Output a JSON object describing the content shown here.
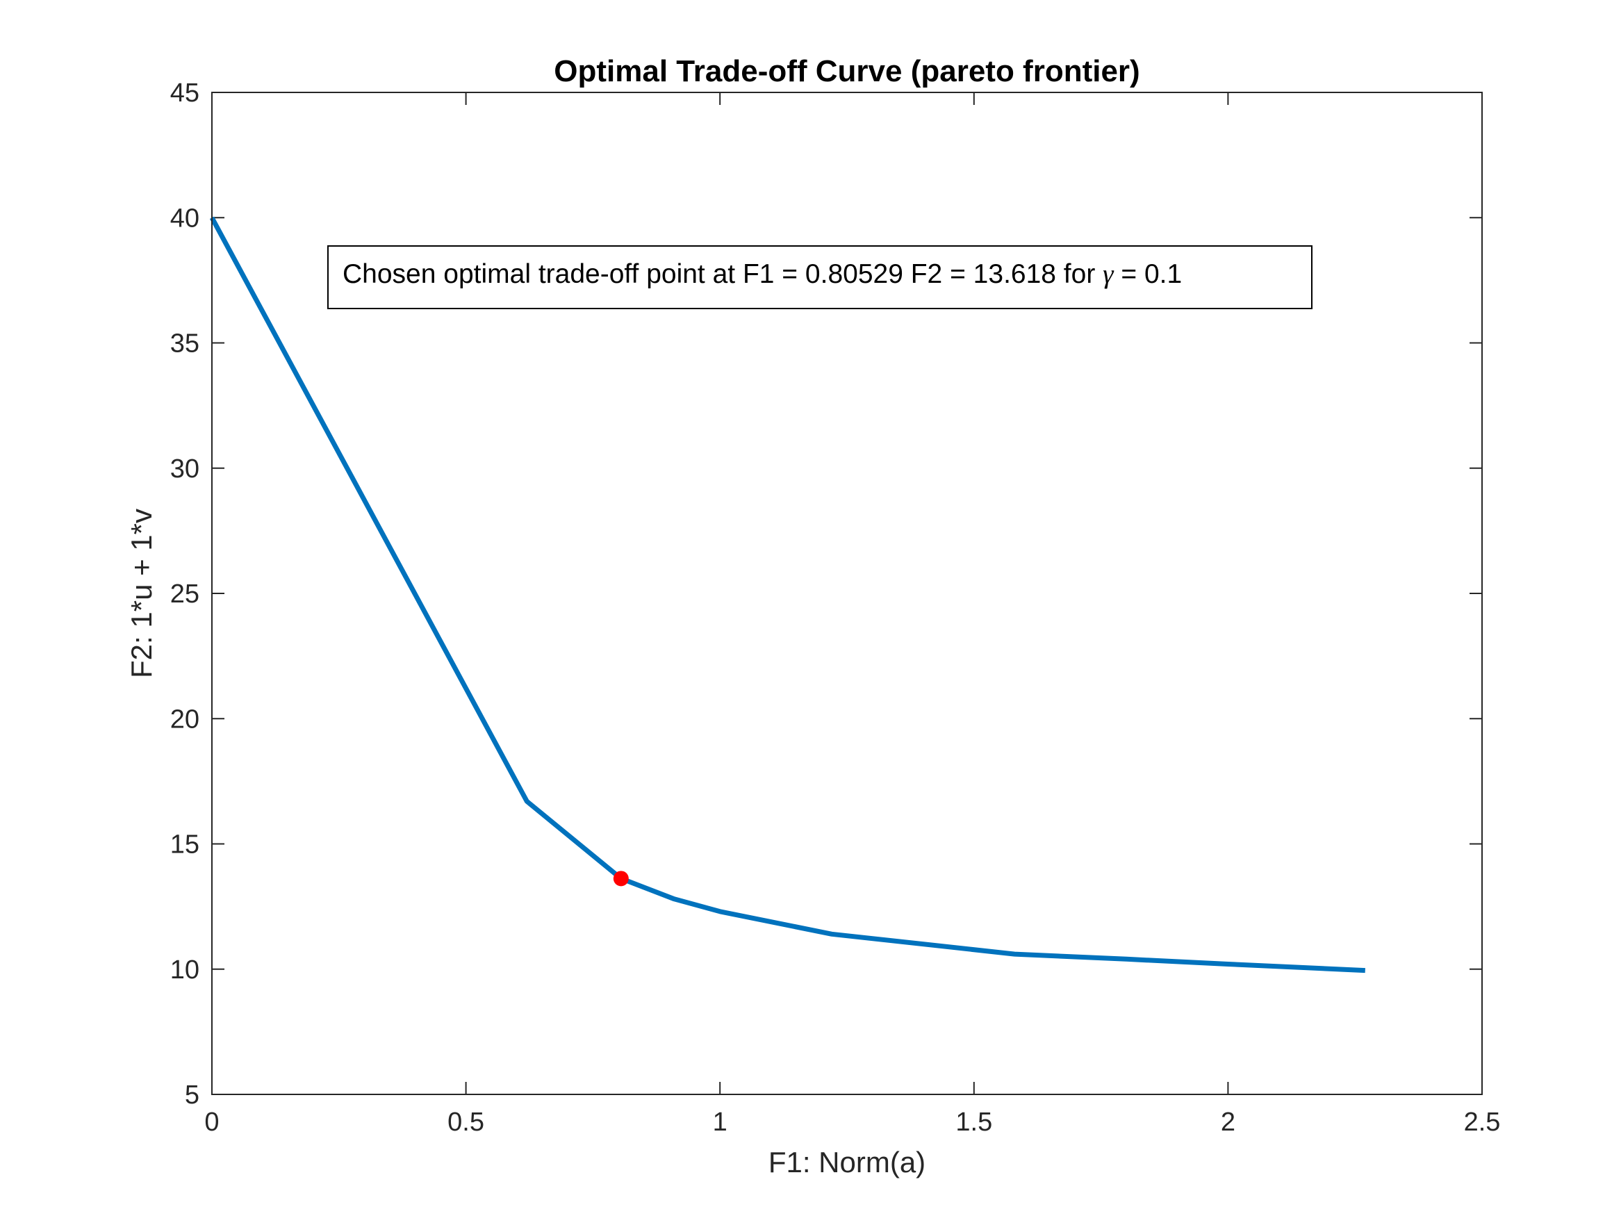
{
  "chart_data": {
    "type": "line",
    "title": "Optimal Trade-off Curve (pareto frontier)",
    "xlabel": "F1: Norm(a)",
    "ylabel": "F2: 1*u + 1*v",
    "xlim": [
      0,
      2.5
    ],
    "ylim": [
      5,
      45
    ],
    "xticks": [
      0,
      0.5,
      1,
      1.5,
      2,
      2.5
    ],
    "xtick_labels": [
      "0",
      "0.5",
      "1",
      "1.5",
      "2",
      "2.5"
    ],
    "yticks": [
      5,
      10,
      15,
      20,
      25,
      30,
      35,
      40,
      45
    ],
    "ytick_labels": [
      "5",
      "10",
      "15",
      "20",
      "25",
      "30",
      "35",
      "40",
      "45"
    ],
    "grid": false,
    "series": [
      {
        "color": "#0072BD",
        "x": [
          0,
          0.62,
          0.80529,
          0.91,
          1.0,
          1.22,
          1.58,
          1.8,
          2.0,
          2.27
        ],
        "y": [
          40,
          16.7,
          13.618,
          12.8,
          12.3,
          11.4,
          10.6,
          10.4,
          10.2,
          9.95
        ]
      }
    ],
    "highlight_point": {
      "x": 0.80529,
      "y": 13.618,
      "color": "#FF0000"
    },
    "annotation": {
      "prefix": "Chosen optimal trade-off point at F1 = 0.80529 F2 = 13.618 for ",
      "symbol": "γ",
      "suffix": " = 0.1"
    }
  }
}
